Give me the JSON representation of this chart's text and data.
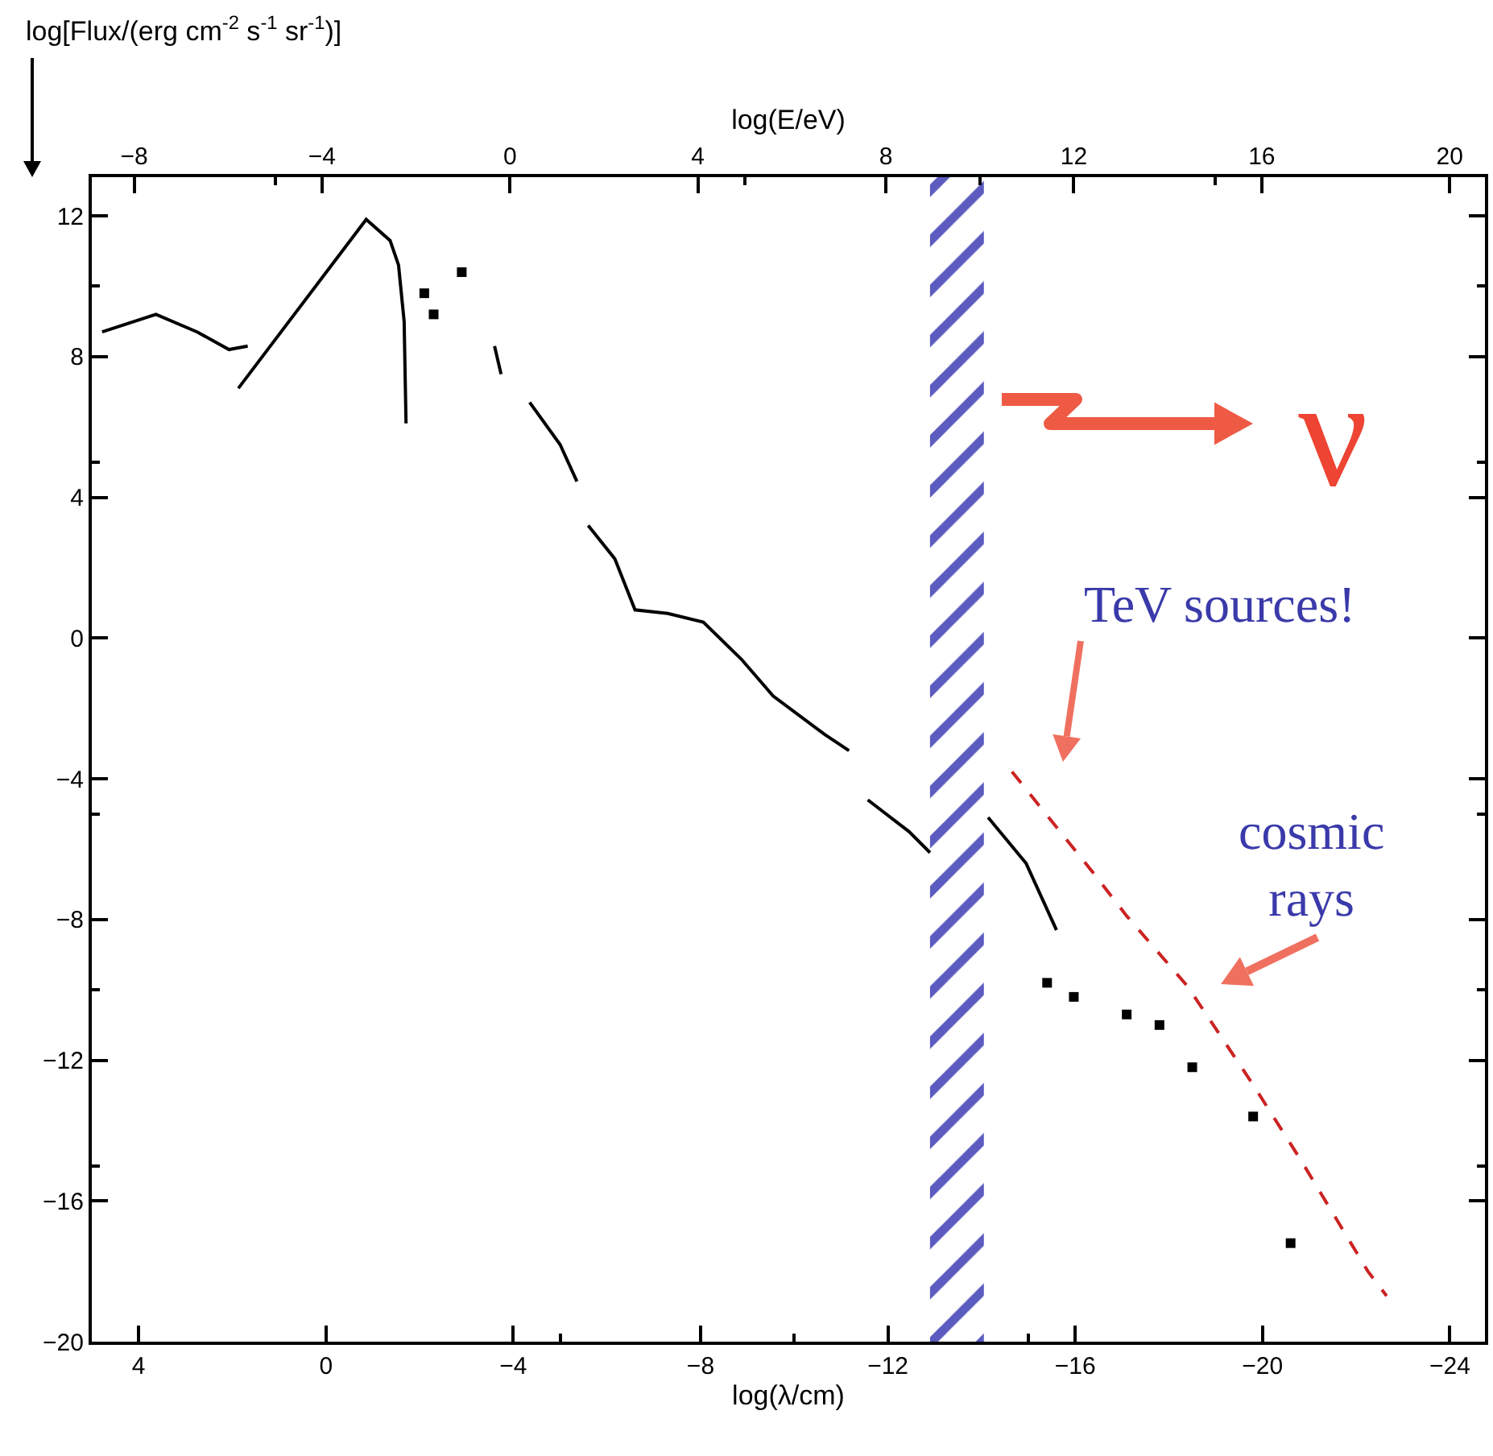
{
  "chart_data": {
    "type": "line",
    "xlabel": "log(λ/cm)",
    "x2label": "log(E/eV)",
    "ylabel": "log[Flux/(erg cm$^{-2}$ s$^{-1}$ sr$^{-1}$)]",
    "xlim": [
      5,
      -24.75
    ],
    "xticks": [
      4,
      0,
      -4,
      -8,
      -12,
      -16,
      -20,
      -24
    ],
    "x2lim": [
      -8.9,
      20.75
    ],
    "x2ticks": [
      -8,
      -4,
      0,
      4,
      8,
      12,
      16,
      20
    ],
    "ylim": [
      -20,
      13.1
    ],
    "yticks": [
      -20,
      -16,
      -12,
      -8,
      -4,
      0,
      4,
      8,
      12
    ],
    "series": [
      {
        "color": "#000000",
        "line_style": "solid",
        "x": [
          4.78,
          3.63,
          2.75,
          2.07,
          1.67,
          null,
          1.87,
          -0.86,
          -1.37,
          -1.55,
          -1.67,
          -1.71,
          null,
          -3.6,
          -3.74,
          null,
          -4.35,
          -5.0,
          -5.36,
          null,
          -5.6,
          -6.17,
          -6.6,
          -7.3,
          -8.06,
          -8.87,
          -9.55,
          -10.66,
          -11.17,
          null,
          -11.57,
          -12.45,
          -12.9,
          null,
          -14.14,
          -14.95,
          -15.6
        ],
        "values": [
          8.7,
          9.2,
          8.7,
          8.2,
          8.3,
          null,
          7.1,
          11.9,
          11.3,
          10.6,
          9.0,
          6.1,
          null,
          8.3,
          7.5,
          null,
          6.7,
          5.5,
          4.45,
          null,
          3.2,
          2.25,
          0.8,
          0.7,
          0.45,
          -0.6,
          -1.65,
          -2.75,
          -3.2,
          null,
          -4.6,
          -5.5,
          -6.1,
          null,
          -5.1,
          -6.4,
          -8.3
        ]
      },
      {
        "type": "scatter",
        "color": "#000000",
        "marker": "square",
        "x": [
          -2.1,
          -2.3,
          -2.9,
          -15.4,
          -15.97,
          -17.1,
          -17.8,
          -18.5,
          -19.8,
          -20.6
        ],
        "values": [
          9.8,
          9.2,
          10.4,
          -9.8,
          -10.2,
          -10.7,
          -11.0,
          -12.2,
          -13.6,
          -17.2
        ]
      },
      {
        "color": "#cc2222",
        "line_style": "dashed",
        "x": [
          -14.65,
          -16.4,
          -17.1,
          -18.4,
          -19.2,
          -19.8,
          -20.8,
          -22.25,
          -22.65
        ],
        "values": [
          -3.8,
          -6.7,
          -7.9,
          -9.9,
          -11.5,
          -12.7,
          -14.8,
          -18.0,
          -18.7
        ]
      }
    ],
    "bands": [
      {
        "axis": "x",
        "from": -12.9,
        "to": -14.05,
        "color": "#5b5bc0"
      }
    ],
    "annotations": [
      "ν",
      "TeV sources!",
      "cosmic\nrays"
    ]
  }
}
